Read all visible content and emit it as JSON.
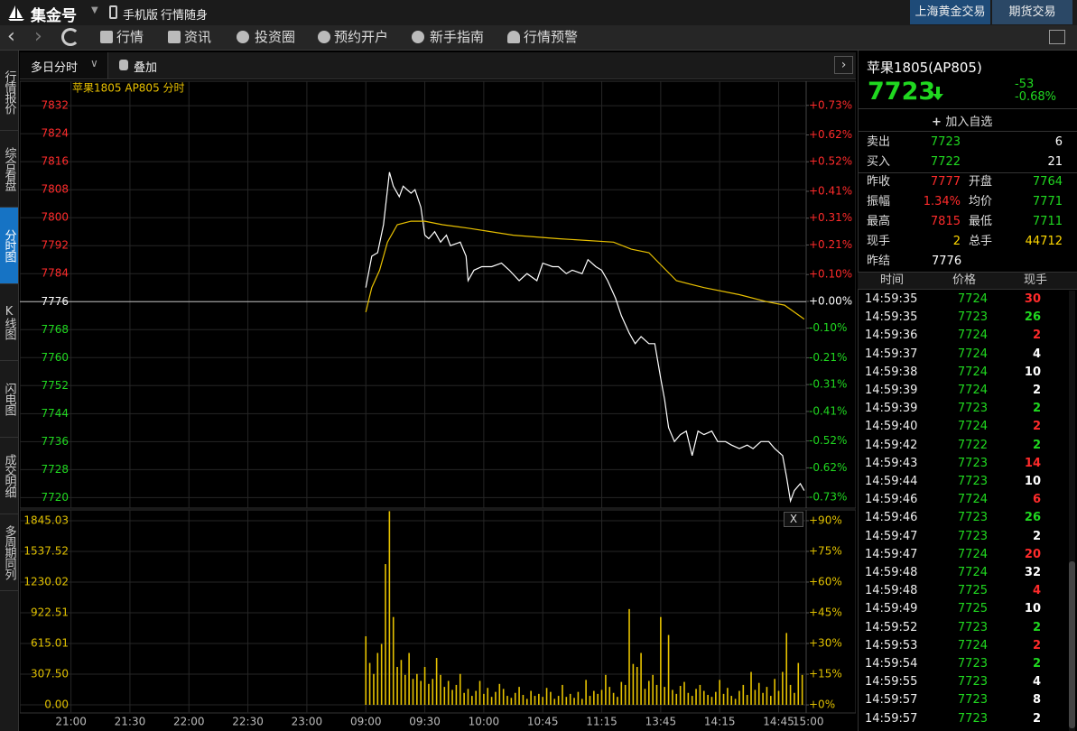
{
  "header": {
    "logo": "集金号",
    "mobile": "手机版",
    "slogan": "行情随身",
    "tabs": [
      "上海黄金交易",
      "期货交易"
    ]
  },
  "toolbar": [
    "行情",
    "资讯",
    "投资圈",
    "预约开户",
    "新手指南",
    "行情预警"
  ],
  "sidebar": [
    "行情报价",
    "综合看盘",
    "分时图",
    "K线图",
    "闪电图",
    "成交明细",
    "多周期同列"
  ],
  "chart_toolbar": {
    "period": "多日分时",
    "overlay": "叠加",
    "close": "X"
  },
  "chart_data": [
    {
      "type": "line",
      "title": "苹果1805 AP805 分时",
      "base": 7776,
      "colors": {
        "up": "#ff2b2b",
        "down": "#20d820",
        "flat": "#ffffff"
      },
      "xlim": [
        -26,
        374
      ],
      "ylim": [
        7717,
        7839
      ],
      "yticks": [
        7720,
        7728,
        7736,
        7744,
        7752,
        7760,
        7768,
        7776,
        7784,
        7792,
        7800,
        7808,
        7816,
        7824,
        7832
      ],
      "y2lim": [
        -0.77,
        0.82
      ],
      "y2ticks": [
        {
          "value": -0.73,
          "label": "-0.73%"
        },
        {
          "value": -0.62,
          "label": "-0.62%"
        },
        {
          "value": -0.52,
          "label": "-0.52%"
        },
        {
          "value": -0.41,
          "label": "-0.41%"
        },
        {
          "value": -0.31,
          "label": "-0.31%"
        },
        {
          "value": -0.21,
          "label": "-0.21%"
        },
        {
          "value": -0.1,
          "label": "-0.10%"
        },
        {
          "value": 0,
          "label": "+0.00%"
        },
        {
          "value": 0.1,
          "label": "+0.10%"
        },
        {
          "value": 0.21,
          "label": "+0.21%"
        },
        {
          "value": 0.31,
          "label": "+0.31%"
        },
        {
          "value": 0.41,
          "label": "+0.41%"
        },
        {
          "value": 0.52,
          "label": "+0.52%"
        },
        {
          "value": 0.62,
          "label": "+0.62%"
        },
        {
          "value": 0.73,
          "label": "+0.73%"
        }
      ],
      "grid": true,
      "series": [
        {
          "color": "#ffffff",
          "x": [
            150,
            153,
            156,
            159,
            162,
            164,
            167,
            169,
            173,
            175,
            178,
            180,
            182,
            185,
            188,
            191,
            193,
            198,
            201,
            202,
            205,
            209,
            214,
            219,
            223,
            228,
            232,
            237,
            240,
            245,
            248,
            252,
            255,
            260,
            263,
            267,
            270,
            273,
            277,
            280,
            284,
            287,
            290,
            294,
            297,
            300,
            302,
            304,
            307,
            310,
            313,
            316,
            319,
            322,
            326,
            329,
            333,
            336,
            340,
            344,
            347,
            351,
            355,
            358,
            362,
            364,
            366,
            368,
            371,
            373
          ],
          "values": [
            7780,
            7789,
            7790,
            7798,
            7813,
            7809,
            7806,
            7809,
            7807,
            7808,
            7803,
            7795,
            7794,
            7796,
            7793,
            7795,
            7792,
            7793,
            7789,
            7782,
            7785,
            7786,
            7786,
            7787,
            7785,
            7782,
            7784,
            7782,
            7787,
            7786,
            7786,
            7784,
            7785,
            7784,
            7788,
            7786,
            7785,
            7782,
            7777,
            7772,
            7767,
            7764,
            7766,
            7764,
            7764,
            7754,
            7748,
            7740,
            7736,
            7738,
            7739,
            7732,
            7739,
            7738,
            7739,
            7736,
            7736,
            7735,
            7734,
            7735,
            7734,
            7736,
            7736,
            7734,
            7732,
            7726,
            7719,
            7722,
            7724,
            7722
          ]
        },
        {
          "color": "#e8c000",
          "x": [
            150,
            153,
            157,
            161,
            166,
            173,
            180,
            189,
            202,
            225,
            248,
            276,
            285,
            294,
            301,
            308,
            322,
            340,
            354,
            363,
            373
          ],
          "values": [
            7773,
            7780,
            7785,
            7793,
            7798,
            7799,
            7799,
            7798,
            7797,
            7795,
            7794,
            7793,
            7791,
            7790,
            7786,
            7782,
            7780,
            7778,
            7776,
            7775,
            7771
          ]
        }
      ]
    },
    {
      "type": "bar",
      "color": "#e6c200",
      "label_color": "#e0c000",
      "xlim": [
        -26,
        374
      ],
      "ylim": [
        -81,
        1953
      ],
      "yticks": [
        {
          "value": 0,
          "label": "0.00"
        },
        {
          "value": 307.5,
          "label": "307.50"
        },
        {
          "value": 615.01,
          "label": "615.01"
        },
        {
          "value": 922.51,
          "label": "922.51"
        },
        {
          "value": 1230.02,
          "label": "1230.02"
        },
        {
          "value": 1537.52,
          "label": "1537.52"
        },
        {
          "value": 1845.03,
          "label": "1845.03"
        }
      ],
      "y2lim": [
        -3.95,
        95.27
      ],
      "y2ticks": [
        {
          "value": 0,
          "label": "+0%"
        },
        {
          "value": 15,
          "label": "+15%"
        },
        {
          "value": 30,
          "label": "+30%"
        },
        {
          "value": 45,
          "label": "+45%"
        },
        {
          "value": 60,
          "label": "+60%"
        },
        {
          "value": 75,
          "label": "+75%"
        },
        {
          "value": 90,
          "label": "+90%"
        }
      ],
      "xticks": [
        {
          "value": 0,
          "label": "21:00"
        },
        {
          "value": 30,
          "label": "21:30"
        },
        {
          "value": 60,
          "label": "22:00"
        },
        {
          "value": 90,
          "label": "22:30"
        },
        {
          "value": 120,
          "label": "23:00"
        },
        {
          "value": 150,
          "label": "09:00"
        },
        {
          "value": 180,
          "label": "09:30"
        },
        {
          "value": 210,
          "label": "10:00"
        },
        {
          "value": 240,
          "label": "10:45"
        },
        {
          "value": 270,
          "label": "11:15"
        },
        {
          "value": 300,
          "label": "13:45"
        },
        {
          "value": 330,
          "label": "14:15"
        },
        {
          "value": 360,
          "label": "14:45"
        },
        {
          "value": 375,
          "label": "15:00"
        }
      ],
      "grid": true,
      "x": [
        150,
        152,
        154,
        156,
        158,
        160,
        162,
        164,
        166,
        168,
        170,
        172,
        174,
        176,
        178,
        180,
        182,
        184,
        186,
        188,
        190,
        192,
        194,
        196,
        198,
        200,
        202,
        204,
        206,
        208,
        210,
        212,
        214,
        216,
        218,
        220,
        222,
        224,
        226,
        228,
        230,
        232,
        234,
        236,
        238,
        240,
        242,
        244,
        246,
        248,
        250,
        252,
        254,
        256,
        258,
        260,
        262,
        264,
        266,
        268,
        270,
        272,
        274,
        276,
        278,
        280,
        282,
        284,
        286,
        288,
        290,
        292,
        294,
        296,
        298,
        300,
        302,
        304,
        306,
        308,
        310,
        312,
        314,
        316,
        318,
        320,
        322,
        324,
        326,
        328,
        330,
        332,
        334,
        336,
        338,
        340,
        342,
        344,
        346,
        348,
        350,
        352,
        354,
        356,
        358,
        360,
        362,
        364,
        366,
        368,
        370,
        372
      ],
      "values": [
        687,
        420,
        310,
        520,
        610,
        1410,
        1940,
        880,
        380,
        450,
        300,
        520,
        260,
        310,
        240,
        380,
        210,
        260,
        470,
        300,
        180,
        240,
        150,
        200,
        310,
        120,
        160,
        90,
        140,
        240,
        110,
        170,
        80,
        130,
        210,
        160,
        90,
        70,
        120,
        180,
        100,
        60,
        140,
        90,
        110,
        80,
        170,
        130,
        60,
        90,
        200,
        80,
        110,
        70,
        130,
        60,
        250,
        90,
        140,
        110,
        150,
        300,
        180,
        120,
        80,
        230,
        200,
        960,
        410,
        380,
        520,
        160,
        240,
        300,
        200,
        880,
        180,
        700,
        150,
        110,
        190,
        230,
        120,
        90,
        160,
        200,
        140,
        100,
        80,
        130,
        250,
        110,
        170,
        90,
        60,
        140,
        200,
        100,
        330,
        150,
        220,
        120,
        180,
        90,
        260,
        140,
        330,
        720,
        200,
        120,
        420,
        300
      ]
    }
  ],
  "quote": {
    "name": "苹果1805(AP805)",
    "price": 7723,
    "change": -53,
    "change_pct": "-0.68%",
    "add": "加入自选",
    "book": [
      [
        "卖出",
        7723,
        6
      ],
      [
        "买入",
        7722,
        21
      ]
    ],
    "stats": [
      [
        "昨收",
        7777,
        "开盘",
        7764
      ],
      [
        "振幅",
        "1.34%",
        "均价",
        7771
      ],
      [
        "最高",
        7815,
        "最低",
        7711
      ],
      [
        "现手",
        2,
        "总手",
        44712
      ]
    ],
    "settle": [
      "昨结",
      7776
    ]
  },
  "trades": {
    "headers": [
      "时间",
      "价格",
      "现手"
    ],
    "rows": [
      {
        "time": "14:59:35",
        "price": 7724,
        "volume": 30,
        "color": "#ff2b2b"
      },
      {
        "time": "14:59:35",
        "price": 7723,
        "volume": 26,
        "color": "#20d820"
      },
      {
        "time": "14:59:36",
        "price": 7724,
        "volume": 2,
        "color": "#ff2b2b"
      },
      {
        "time": "14:59:37",
        "price": 7724,
        "volume": 4,
        "color": "#ffffff"
      },
      {
        "time": "14:59:38",
        "price": 7724,
        "volume": 10,
        "color": "#ffffff"
      },
      {
        "time": "14:59:39",
        "price": 7724,
        "volume": 2,
        "color": "#ffffff"
      },
      {
        "time": "14:59:39",
        "price": 7723,
        "volume": 2,
        "color": "#20d820"
      },
      {
        "time": "14:59:40",
        "price": 7724,
        "volume": 2,
        "color": "#ff2b2b"
      },
      {
        "time": "14:59:42",
        "price": 7722,
        "volume": 2,
        "color": "#20d820"
      },
      {
        "time": "14:59:43",
        "price": 7723,
        "volume": 14,
        "color": "#ff2b2b"
      },
      {
        "time": "14:59:44",
        "price": 7723,
        "volume": 10,
        "color": "#ffffff"
      },
      {
        "time": "14:59:46",
        "price": 7724,
        "volume": 6,
        "color": "#ff2b2b"
      },
      {
        "time": "14:59:46",
        "price": 7723,
        "volume": 26,
        "color": "#20d820"
      },
      {
        "time": "14:59:47",
        "price": 7723,
        "volume": 2,
        "color": "#ffffff"
      },
      {
        "time": "14:59:47",
        "price": 7724,
        "volume": 20,
        "color": "#ff2b2b"
      },
      {
        "time": "14:59:48",
        "price": 7724,
        "volume": 32,
        "color": "#ffffff"
      },
      {
        "time": "14:59:48",
        "price": 7725,
        "volume": 4,
        "color": "#ff2b2b"
      },
      {
        "time": "14:59:49",
        "price": 7725,
        "volume": 10,
        "color": "#ffffff"
      },
      {
        "time": "14:59:52",
        "price": 7723,
        "volume": 2,
        "color": "#20d820"
      },
      {
        "time": "14:59:53",
        "price": 7724,
        "volume": 2,
        "color": "#ff2b2b"
      },
      {
        "time": "14:59:54",
        "price": 7723,
        "volume": 2,
        "color": "#20d820"
      },
      {
        "time": "14:59:55",
        "price": 7723,
        "volume": 4,
        "color": "#ffffff"
      },
      {
        "time": "14:59:57",
        "price": 7723,
        "volume": 8,
        "color": "#ffffff"
      },
      {
        "time": "14:59:57",
        "price": 7723,
        "volume": 2,
        "color": "#ffffff"
      }
    ]
  }
}
